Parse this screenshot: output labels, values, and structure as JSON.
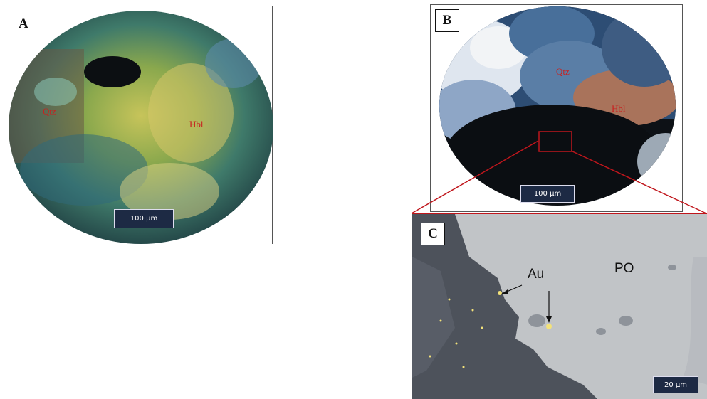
{
  "panels": {
    "a": {
      "letter": "A",
      "scale": "100 µm",
      "minerals": [
        "Qtz",
        "Hbl"
      ]
    },
    "b": {
      "letter": "B",
      "scale": "100 µm",
      "minerals": [
        "Qtz",
        "Hbl"
      ]
    },
    "c": {
      "letter": "C",
      "scale": "20 µm",
      "labels": {
        "gold": "Au",
        "pyrrhotite": "PO"
      }
    }
  },
  "colors": {
    "callout_line": "#c0161c",
    "scale_bar_bg": "#1d2a44"
  }
}
